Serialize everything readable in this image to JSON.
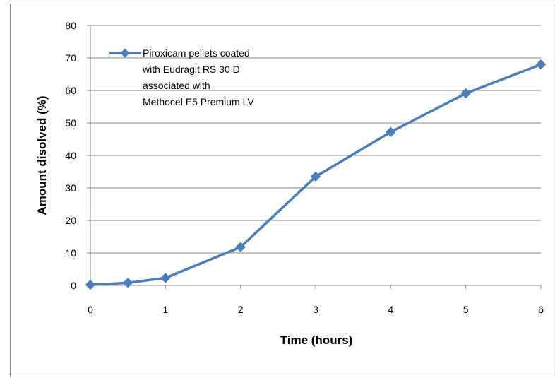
{
  "chart_data": {
    "type": "line",
    "title": "",
    "xlabel": "Time (hours)",
    "ylabel": "Amount disolved (%)",
    "xlim": [
      0,
      6
    ],
    "ylim": [
      0,
      80
    ],
    "x_ticks": [
      0,
      1,
      2,
      3,
      4,
      5,
      6
    ],
    "y_ticks": [
      0,
      10,
      20,
      30,
      40,
      50,
      60,
      70,
      80
    ],
    "grid": "horizontal",
    "legend_position": "top-left",
    "series": [
      {
        "name_lines": [
          "Piroxicam pellets coated",
          "with Eudragit RS 30 D",
          "associated with",
          "Methocel E5 Premium LV"
        ],
        "color": "#4a7ebb",
        "marker": "diamond",
        "x": [
          0,
          0.5,
          1,
          2,
          3,
          4,
          5,
          6
        ],
        "y": [
          0.2,
          0.8,
          2.3,
          11.8,
          33.5,
          47.2,
          59.1,
          68.0
        ]
      }
    ]
  }
}
